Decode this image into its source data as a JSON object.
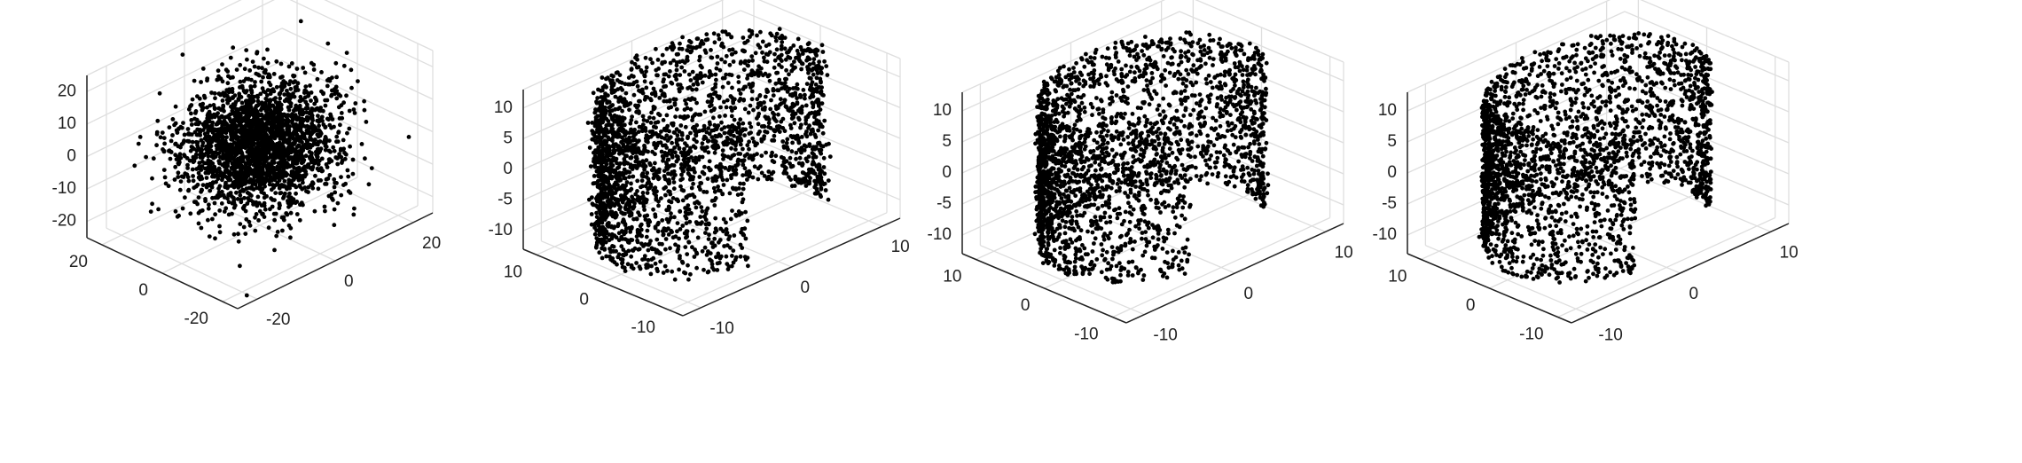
{
  "figure": {
    "background": "#ffffff",
    "point_color": "#000000",
    "grid_color": "#dedede"
  },
  "chart_data": [
    {
      "type": "scatter",
      "projection": "3d",
      "title": "",
      "shape": "isotropic gaussian blob",
      "points_approx": 2500,
      "xlim": [
        -25,
        25
      ],
      "ylim": [
        -25,
        25
      ],
      "zlim": [
        -25,
        25
      ],
      "x_ticks": [
        "-20",
        "0",
        "20"
      ],
      "y_ticks": [
        "-20",
        "0",
        "20"
      ],
      "z_ticks": [
        "-20",
        "-10",
        "0",
        "10",
        "20"
      ],
      "grid": true,
      "std": 8
    },
    {
      "type": "scatter",
      "projection": "3d",
      "title": "",
      "shape": "cylindrical sheet with gap (noisy)",
      "points_approx": 2500,
      "xlim": [
        -12,
        12
      ],
      "ylim": [
        -12,
        12
      ],
      "zlim": [
        -13,
        13
      ],
      "x_ticks": [
        "-10",
        "0",
        "10"
      ],
      "y_ticks": [
        "-10",
        "0",
        "10"
      ],
      "z_ticks": [
        "-10",
        "-5",
        "0",
        "5",
        "10"
      ],
      "grid": true,
      "radius": 10,
      "height_range": [
        -12,
        12
      ]
    },
    {
      "type": "scatter",
      "projection": "3d",
      "title": "",
      "shape": "cylindrical sheet with gap",
      "points_approx": 2500,
      "xlim": [
        -12,
        12
      ],
      "ylim": [
        -12,
        12
      ],
      "zlim": [
        -13,
        13
      ],
      "x_ticks": [
        "-10",
        "0",
        "10"
      ],
      "y_ticks": [
        "-10",
        "0",
        "10"
      ],
      "z_ticks": [
        "-10",
        "-5",
        "0",
        "5",
        "10"
      ],
      "grid": true,
      "radius": 10,
      "height_range": [
        -12,
        12
      ]
    },
    {
      "type": "scatter",
      "projection": "3d",
      "title": "",
      "shape": "cylindrical sheet with gap",
      "points_approx": 2500,
      "xlim": [
        -12,
        12
      ],
      "ylim": [
        -12,
        12
      ],
      "zlim": [
        -13,
        13
      ],
      "x_ticks": [
        "-10",
        "0",
        "10"
      ],
      "y_ticks": [
        "-10",
        "0",
        "10"
      ],
      "z_ticks": [
        "-10",
        "-5",
        "0",
        "5",
        "10"
      ],
      "grid": true,
      "radius": 10,
      "height_range": [
        -12,
        12
      ]
    }
  ]
}
